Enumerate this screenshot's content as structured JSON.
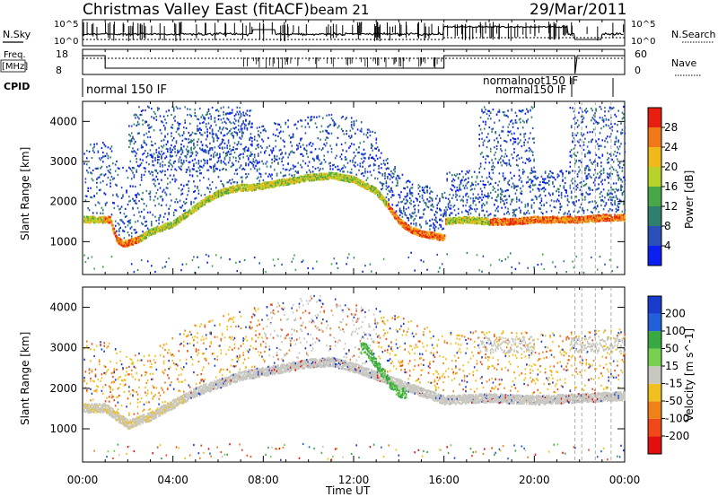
{
  "header": {
    "title": "Christmas Valley East (fitACF)",
    "beam": "beam 21",
    "date": "29/Mar/2011"
  },
  "strips": {
    "noise": {
      "left_label": "N.Sky",
      "right_label": "N.Search",
      "left_ticks": [
        "10^5",
        "10^0"
      ],
      "right_ticks": [
        "10^5",
        "10^0"
      ]
    },
    "freq": {
      "left_label": "Freq.",
      "left_unit": "[MHz]",
      "right_label": "Nave",
      "left_ticks": [
        "18",
        "8"
      ],
      "right_ticks": [
        "60",
        "0"
      ]
    },
    "cpid": {
      "label": "CPID",
      "segments": [
        "normal 150 IF",
        "normalnoot150 IF",
        "normal150 IF"
      ]
    }
  },
  "panels": {
    "xlabel": "Time UT",
    "power": {
      "ylabel": "Slant Range [km]"
    },
    "velocity": {
      "ylabel": "Slant Range [km]"
    }
  },
  "colorbars": {
    "power": {
      "label": "Power [dB]",
      "ticks": [
        "4",
        "8",
        "12",
        "16",
        "20",
        "24",
        "28"
      ],
      "colors": [
        "#0a1ff0",
        "#2a4fb8",
        "#2f7f6f",
        "#48a848",
        "#b8d22a",
        "#f0b818",
        "#f07818",
        "#e81e10"
      ]
    },
    "velocity": {
      "label": "Velocity [m s^-1]",
      "ticks": [
        "200",
        "100",
        "50",
        "15",
        "-15",
        "-50",
        "-100",
        "-200"
      ],
      "colors": [
        "#1a3ccc",
        "#2060d8",
        "#38a840",
        "#78d050",
        "#c8c8c0",
        "#f0c020",
        "#f08018",
        "#f04818",
        "#e01010"
      ]
    }
  },
  "chart_data": [
    {
      "type": "scatter",
      "title": "Christmas Valley East (fitACF) beam 21 29/Mar/2011",
      "xlabel": "Time UT",
      "ylabel": "Slant Range [km]",
      "colorbar": "Power [dB]",
      "x_ticks": [
        "00:00",
        "04:00",
        "08:00",
        "12:00",
        "16:00",
        "20:00",
        "00:00"
      ],
      "xlim": [
        0,
        24
      ],
      "y_ticks": [
        1000,
        2000,
        3000,
        4000
      ],
      "ylim": [
        180,
        4500
      ],
      "series": [
        {
          "x": [
            1.2,
            1.5,
            1.8,
            2.2,
            2.6,
            3.0,
            3.5,
            4.0,
            4.5,
            5.0,
            5.5,
            6.0,
            6.5,
            7.0,
            7.5
          ],
          "y": [
            1550,
            1050,
            950,
            1000,
            1100,
            1250,
            1350,
            1450,
            1650,
            1850,
            2050,
            2200,
            2300,
            2350,
            2350
          ]
        },
        {
          "x": [
            8.0,
            9.0,
            10.0,
            11.0,
            12.0,
            13.0,
            13.5,
            14.0,
            14.5,
            15.0,
            15.5,
            16.0
          ],
          "y": [
            2400,
            2500,
            2600,
            2650,
            2550,
            2250,
            1900,
            1500,
            1300,
            1200,
            1150,
            1100
          ]
        },
        {
          "x": [
            16.0,
            17.0,
            18.0,
            19.0,
            20.0,
            21.0,
            22.0,
            23.0,
            24.0
          ],
          "y": [
            1500,
            1550,
            1500,
            1500,
            1550,
            1550,
            1550,
            1600,
            1600
          ]
        }
      ]
    },
    {
      "type": "scatter",
      "title": "",
      "xlabel": "Time UT",
      "ylabel": "Slant Range [km]",
      "colorbar": "Velocity [m s^-1]",
      "x_ticks": [
        "00:00",
        "04:00",
        "08:00",
        "12:00",
        "16:00",
        "20:00",
        "00:00"
      ],
      "xlim": [
        0,
        24
      ],
      "y_ticks": [
        1000,
        2000,
        3000,
        4000
      ],
      "ylim": [
        180,
        4500
      ],
      "series": [
        {
          "x": [
            0.3,
            1.0,
            2.0,
            3.0,
            4.0,
            5.0,
            6.0,
            7.0,
            8.0,
            9.0,
            10.0,
            11.0,
            12.0
          ],
          "y": [
            1500,
            1500,
            1100,
            1300,
            1600,
            1900,
            2100,
            2300,
            2400,
            2500,
            2600,
            2650,
            2500
          ]
        },
        {
          "x": [
            12.5,
            13.0,
            13.5,
            14.0
          ],
          "y": [
            3000,
            2600,
            2200,
            1900
          ]
        },
        {
          "x": [
            16.0,
            18.0,
            20.0,
            22.0,
            24.0
          ],
          "y": [
            1700,
            1750,
            1700,
            1750,
            1800
          ]
        }
      ]
    }
  ]
}
